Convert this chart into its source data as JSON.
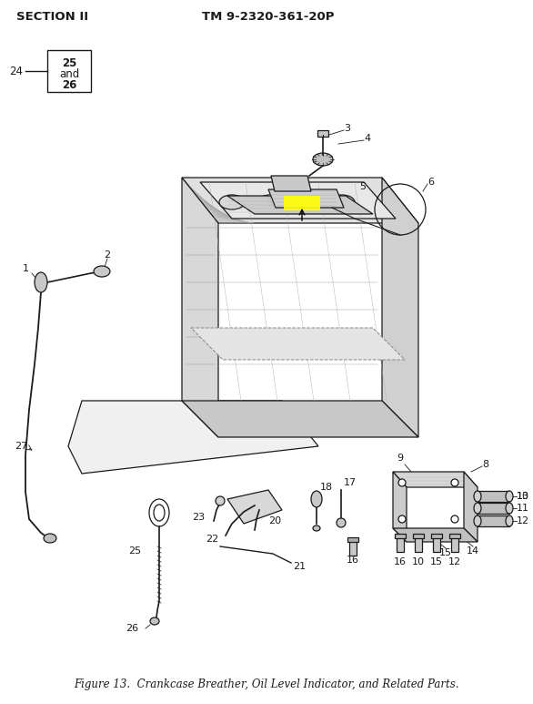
{
  "title_left": "SECTION II",
  "title_right": "TM 9-2320-361-20P",
  "caption": "Figure 13.  Crankcase Breather, Oil Level Indicator, and Related Parts.",
  "bg_color": "#ffffff",
  "text_color": "#1a1a1a",
  "title_fontsize": 9.5,
  "caption_fontsize": 8.5,
  "highlight_color": "#ffff00",
  "lw": 0.9
}
